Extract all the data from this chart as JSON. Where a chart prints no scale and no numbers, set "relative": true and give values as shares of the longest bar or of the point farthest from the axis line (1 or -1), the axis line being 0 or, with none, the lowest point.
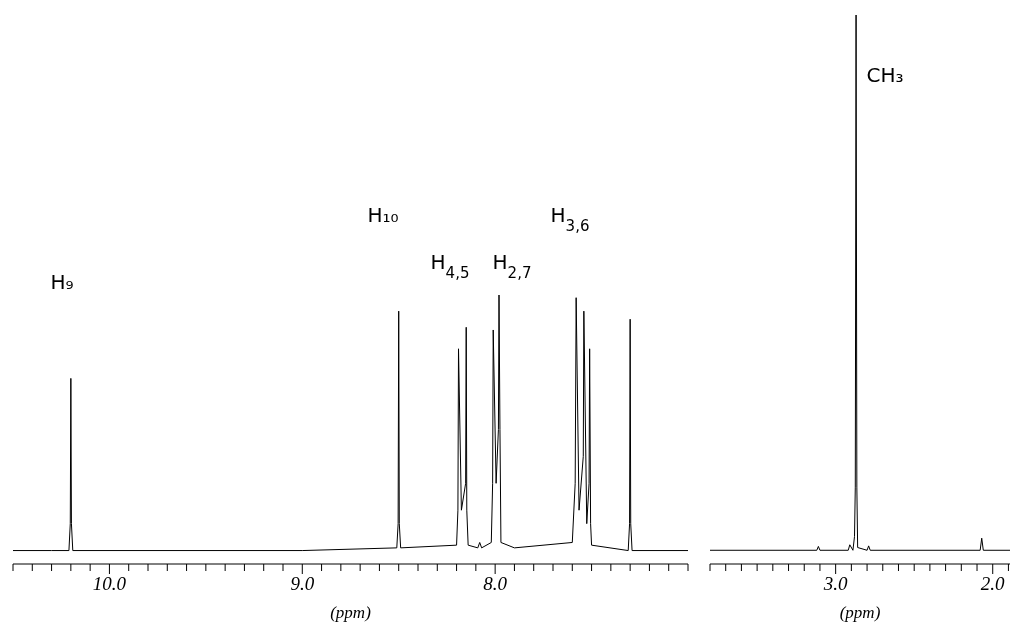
{
  "chart_data": [
    {
      "type": "line",
      "relative": true,
      "xlabel": "(ppm)",
      "color": "#000000",
      "xlim": [
        10.5,
        7.0
      ],
      "xticks": [
        {
          "value": 10.5,
          "label": null
        },
        {
          "value": 10.4,
          "label": null
        },
        {
          "value": 10.3,
          "label": null
        },
        {
          "value": 10.2,
          "label": null
        },
        {
          "value": 10.1,
          "label": null
        },
        {
          "value": 10.0,
          "label": "10.0"
        },
        {
          "value": 9.9,
          "label": null
        },
        {
          "value": 9.8,
          "label": null
        },
        {
          "value": 9.7,
          "label": null
        },
        {
          "value": 9.6,
          "label": null
        },
        {
          "value": 9.5,
          "label": null
        },
        {
          "value": 9.4,
          "label": null
        },
        {
          "value": 9.3,
          "label": null
        },
        {
          "value": 9.2,
          "label": null
        },
        {
          "value": 9.1,
          "label": null
        },
        {
          "value": 9.0,
          "label": "9.0"
        },
        {
          "value": 8.9,
          "label": null
        },
        {
          "value": 8.8,
          "label": null
        },
        {
          "value": 8.7,
          "label": null
        },
        {
          "value": 8.6,
          "label": null
        },
        {
          "value": 8.5,
          "label": null
        },
        {
          "value": 8.4,
          "label": null
        },
        {
          "value": 8.3,
          "label": null
        },
        {
          "value": 8.2,
          "label": null
        },
        {
          "value": 8.1,
          "label": null
        },
        {
          "value": 8.0,
          "label": "8.0"
        },
        {
          "value": 7.9,
          "label": null
        },
        {
          "value": 7.8,
          "label": null
        },
        {
          "value": 7.7,
          "label": null
        },
        {
          "value": 7.6,
          "label": null
        },
        {
          "value": 7.5,
          "label": null
        },
        {
          "value": 7.4,
          "label": null
        },
        {
          "value": 7.3,
          "label": null
        },
        {
          "value": 7.2,
          "label": null
        },
        {
          "value": 7.1,
          "label": null
        },
        {
          "value": 7.0,
          "label": null
        }
      ],
      "x": [
        10.5,
        10.3,
        10.21,
        10.203,
        10.2,
        10.197,
        10.19,
        9.0,
        8.51,
        8.503,
        8.5,
        8.497,
        8.49,
        8.2,
        8.193,
        8.19,
        8.175,
        8.153,
        8.15,
        8.147,
        8.14,
        8.09,
        8.08,
        8.07,
        8.02,
        8.013,
        8.01,
        7.995,
        7.983,
        7.98,
        7.975,
        7.97,
        7.9,
        7.6,
        7.585,
        7.58,
        7.565,
        7.543,
        7.54,
        7.525,
        7.513,
        7.51,
        7.505,
        7.5,
        7.31,
        7.303,
        7.3,
        7.297,
        7.29,
        7.0
      ],
      "values": [
        0.05,
        0.05,
        0.05,
        0.15,
        0.69,
        0.15,
        0.05,
        0.05,
        0.06,
        0.15,
        0.94,
        0.15,
        0.06,
        0.07,
        0.2,
        0.8,
        0.2,
        0.3,
        0.88,
        0.2,
        0.07,
        0.06,
        0.08,
        0.06,
        0.08,
        0.3,
        0.87,
        0.3,
        0.5,
        1.0,
        0.5,
        0.08,
        0.06,
        0.08,
        0.3,
        0.99,
        0.2,
        0.4,
        0.94,
        0.15,
        0.3,
        0.8,
        0.15,
        0.07,
        0.05,
        0.15,
        0.91,
        0.15,
        0.05,
        0.05
      ],
      "annotations": [
        "H₉",
        "H₁₀",
        "H$_{4,5}$",
        "H$_{2,7}$",
        "H$_{3,6}$"
      ]
    },
    {
      "type": "line",
      "relative": true,
      "xlabel": "(ppm)",
      "color": "#000000",
      "xlim": [
        3.8,
        1.89
      ],
      "xticks": [
        {
          "value": 3.8,
          "label": null
        },
        {
          "value": 3.7,
          "label": null
        },
        {
          "value": 3.6,
          "label": null
        },
        {
          "value": 3.5,
          "label": null
        },
        {
          "value": 3.4,
          "label": null
        },
        {
          "value": 3.3,
          "label": null
        },
        {
          "value": 3.2,
          "label": null
        },
        {
          "value": 3.1,
          "label": null
        },
        {
          "value": 3.0,
          "label": "3.0"
        },
        {
          "value": 2.9,
          "label": null
        },
        {
          "value": 2.8,
          "label": null
        },
        {
          "value": 2.7,
          "label": null
        },
        {
          "value": 2.6,
          "label": null
        },
        {
          "value": 2.5,
          "label": null
        },
        {
          "value": 2.4,
          "label": null
        },
        {
          "value": 2.3,
          "label": null
        },
        {
          "value": 2.2,
          "label": null
        },
        {
          "value": 2.1,
          "label": null
        },
        {
          "value": 2.0,
          "label": "2.0"
        },
        {
          "value": 1.9,
          "label": null
        }
      ],
      "x": [
        3.8,
        3.12,
        3.11,
        3.1,
        2.92,
        2.91,
        2.89,
        2.88,
        2.875,
        2.87,
        2.865,
        2.86,
        2.8,
        2.79,
        2.78,
        2.08,
        2.07,
        2.06,
        1.89
      ],
      "values": [
        0.025,
        0.025,
        0.032,
        0.025,
        0.025,
        0.035,
        0.025,
        0.05,
        0.14,
        1.0,
        0.14,
        0.03,
        0.025,
        0.033,
        0.025,
        0.025,
        0.047,
        0.025,
        0.025
      ],
      "annotations": [
        "CH₃"
      ]
    }
  ]
}
